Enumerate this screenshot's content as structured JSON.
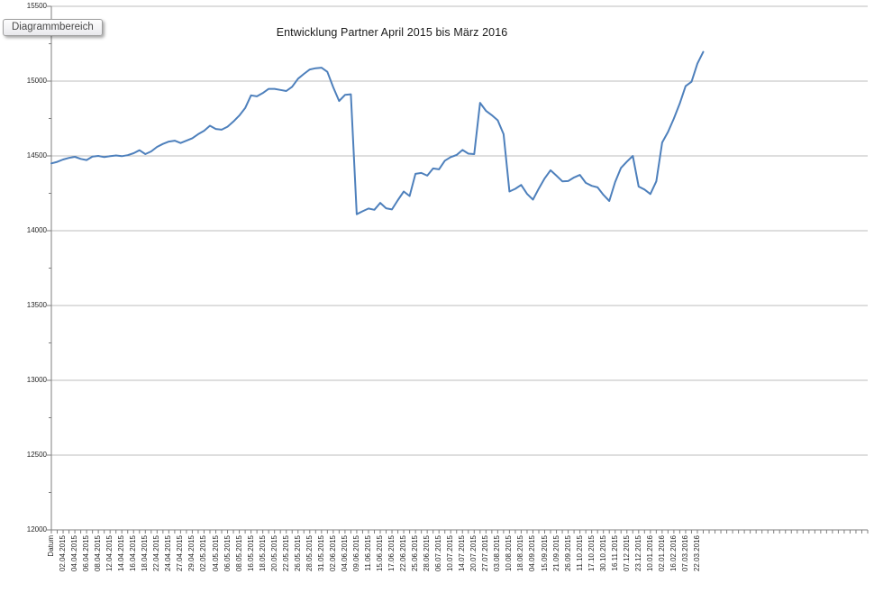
{
  "tooltip": {
    "label": "Diagrammbereich"
  },
  "chart_data": {
    "type": "line",
    "title": "Entwicklung Partner April 2015 bis März 2016",
    "xlabel": "",
    "ylabel": "",
    "ylim": [
      12000,
      15500
    ],
    "y_major_step": 500,
    "y_minor_step": 250,
    "y_tick_labels": [
      "15500",
      "15000",
      "14500",
      "14000",
      "13500",
      "13000",
      "12500",
      "12000"
    ],
    "grid": true,
    "legend": "none",
    "line_color": "#4E80BC",
    "gridline_color": "#BEBEBE",
    "axis_color": "#7F7F7F",
    "label_every_n_slots": 2,
    "total_axis_slots": 139,
    "categories": [
      "Datum",
      "02.04.2015",
      "04.04.2015",
      "06.04.2015",
      "08.04.2015",
      "12.04.2015",
      "14.04.2015",
      "16.04.2015",
      "18.04.2015",
      "22.04.2015",
      "24.04.2015",
      "27.04.2015",
      "29.04.2015",
      "02.05.2015",
      "04.05.2015",
      "06.05.2015",
      "08.05.2015",
      "16.05.2015",
      "18.05.2015",
      "20.05.2015",
      "22.05.2015",
      "26.05.2015",
      "28.05.2015",
      "31.05.2015",
      "02.06.2015",
      "04.06.2015",
      "09.06.2015",
      "11.06.2015",
      "15.06.2015",
      "17.06.2015",
      "22.06.2015",
      "25.06.2015",
      "28.06.2015",
      "06.07.2015",
      "10.07.2015",
      "14.07.2015",
      "20.07.2015",
      "27.07.2015",
      "03.08.2015",
      "10.08.2015",
      "18.08.2015",
      "04.09.2015",
      "15.09.2015",
      "21.09.2015",
      "26.09.2015",
      "11.10.2015",
      "17.10.2015",
      "30.10.2015",
      "16.11.2015",
      "07.12.2015",
      "23.12.2015",
      "10.01.2016",
      "02.01.2016",
      "16.02.2016",
      "07.03.2016",
      "22.03.2016"
    ],
    "values": [
      14450,
      14460,
      14476,
      14487,
      14494,
      14480,
      14472,
      14495,
      14500,
      14492,
      14498,
      14503,
      14498,
      14505,
      14518,
      14538,
      14512,
      14530,
      14560,
      14580,
      14596,
      14602,
      14586,
      14602,
      14618,
      14645,
      14668,
      14702,
      14680,
      14675,
      14695,
      14730,
      14770,
      14820,
      14905,
      14898,
      14920,
      14948,
      14948,
      14941,
      14934,
      14962,
      15016,
      15048,
      15078,
      15086,
      15090,
      15062,
      14958,
      14867,
      14908,
      14912,
      14110,
      14130,
      14148,
      14140,
      14186,
      14150,
      14142,
      14205,
      14262,
      14232,
      14380,
      14386,
      14368,
      14416,
      14410,
      14468,
      14492,
      14506,
      14540,
      14515,
      14512,
      14855,
      14802,
      14772,
      14738,
      14645,
      14262,
      14280,
      14306,
      14246,
      14208,
      14282,
      14350,
      14404,
      14368,
      14330,
      14332,
      14356,
      14373,
      14320,
      14300,
      14290,
      14240,
      14199,
      14325,
      14420,
      14462,
      14500,
      14295,
      14275,
      14245,
      14330,
      14590,
      14660,
      14750,
      14850,
      14966,
      14996,
      15117,
      15195
    ]
  }
}
